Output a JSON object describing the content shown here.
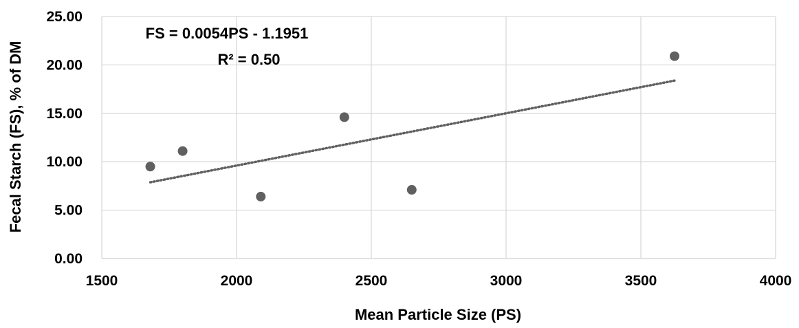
{
  "chart_data": {
    "type": "scatter",
    "title": "",
    "xlabel": "Mean Particle Size (PS)",
    "ylabel": "Fecal Starch (FS), % of DM",
    "xlim": [
      1500,
      4000
    ],
    "ylim": [
      0,
      25
    ],
    "x_ticks": [
      "1500",
      "2000",
      "2500",
      "3000",
      "3500",
      "4000"
    ],
    "y_ticks": [
      "0.00",
      "5.00",
      "10.00",
      "15.00",
      "20.00",
      "25.00"
    ],
    "grid": true,
    "legend": "none",
    "series": [
      {
        "points": [
          {
            "x": 1680,
            "y": 9.5
          },
          {
            "x": 1800,
            "y": 11.1
          },
          {
            "x": 2090,
            "y": 6.4
          },
          {
            "x": 2400,
            "y": 14.6
          },
          {
            "x": 2650,
            "y": 7.1
          },
          {
            "x": 3625,
            "y": 20.9
          }
        ],
        "color": "#606060"
      }
    ],
    "trendline": {
      "type": "linear",
      "slope": 0.0054,
      "intercept": -1.1951,
      "x_range": [
        1680,
        3625
      ],
      "color": "#606060",
      "style": "dotted"
    },
    "annotations": {
      "equation": "FS = 0.0054PS - 1.1951",
      "r_squared": "R² = 0.50"
    }
  }
}
